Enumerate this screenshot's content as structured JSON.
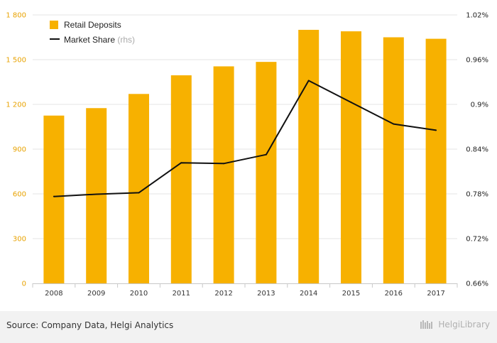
{
  "chart_data": {
    "type": "bar",
    "categories": [
      "2008",
      "2009",
      "2010",
      "2011",
      "2012",
      "2013",
      "2014",
      "2015",
      "2016",
      "2017"
    ],
    "series": [
      {
        "name": "Retail Deposits",
        "type": "bar",
        "axis": "left",
        "color": "#f7b100",
        "values": [
          1125,
          1175,
          1270,
          1395,
          1455,
          1485,
          1700,
          1690,
          1650,
          1640
        ]
      },
      {
        "name": "Market Share",
        "name_suffix": "(rhs)",
        "type": "line",
        "axis": "right",
        "color": "#111111",
        "values": [
          0.7765,
          0.7795,
          0.7815,
          0.8217,
          0.8207,
          0.8327,
          0.9319,
          0.9028,
          0.8737,
          0.8653
        ]
      }
    ],
    "left_axis": {
      "ticks": [
        "0",
        "300",
        "600",
        "900",
        "1 200",
        "1 500",
        "1 800"
      ],
      "ylim": [
        0,
        1800
      ]
    },
    "right_axis": {
      "ticks": [
        "0.66%",
        "0.72%",
        "0.78%",
        "0.84%",
        "0.9%",
        "0.96%",
        "1.02%"
      ],
      "ylim": [
        0.66,
        1.02
      ]
    },
    "legend": {
      "placement": "top-left"
    },
    "grid": true
  },
  "footer": {
    "source": "Source: Company Data, Helgi Analytics",
    "brand": "HelgiLibrary"
  },
  "icons": {
    "brand_logo": "library-books-icon"
  }
}
